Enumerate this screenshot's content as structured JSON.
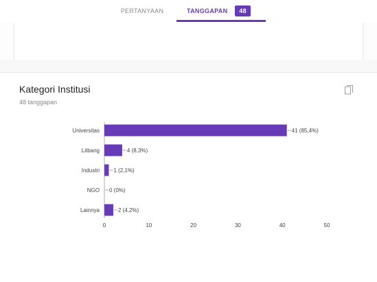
{
  "tabs": {
    "questions_label": "PERTANYAAN",
    "responses_label": "TANGGAPAN",
    "responses_count": "48"
  },
  "question": {
    "title": "Kategori Institusi",
    "response_count_text": "48 tanggapan",
    "copy_icon": "copy-icon"
  },
  "colors": {
    "accent": "#673ab7",
    "bar": "#673ab7"
  },
  "chart_data": {
    "type": "bar",
    "orientation": "horizontal",
    "categories": [
      "Universitas",
      "Litbang",
      "Industri",
      "NGO",
      "Lainnya"
    ],
    "values": [
      41,
      4,
      1,
      0,
      2
    ],
    "data_labels": [
      "41 (85,4%)",
      "4 (8,3%)",
      "1 (2,1%)",
      "0 (0%)",
      "2 (4,2%)"
    ],
    "xlim": [
      0,
      50
    ],
    "xticks": [
      0,
      10,
      20,
      30,
      40,
      50
    ],
    "grid": false
  }
}
